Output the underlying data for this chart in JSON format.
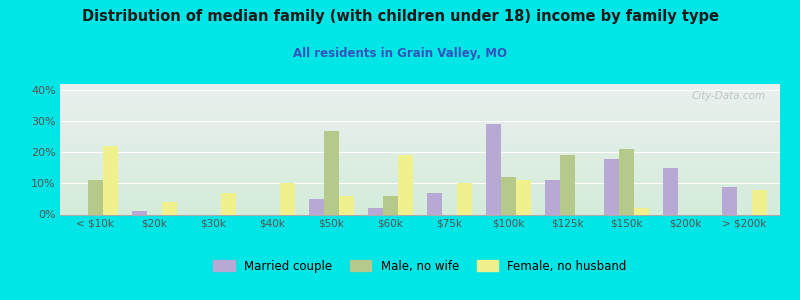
{
  "title": "Distribution of median family (with children under 18) income by family type",
  "subtitle": "All residents in Grain Valley, MO",
  "categories": [
    "< $10k",
    "$20k",
    "$30k",
    "$40k",
    "$50k",
    "$60k",
    "$75k",
    "$100k",
    "$125k",
    "$150k",
    "$200k",
    "> $200k"
  ],
  "married_couple": [
    0,
    1,
    0,
    0,
    5,
    2,
    7,
    29,
    11,
    18,
    15,
    9
  ],
  "male_no_wife": [
    11,
    0,
    0,
    0,
    27,
    6,
    0,
    12,
    19,
    21,
    0,
    0
  ],
  "female_no_husband": [
    22,
    4,
    7,
    10,
    6,
    19,
    10,
    11,
    0,
    2,
    0,
    8
  ],
  "married_color": "#b8a9d4",
  "male_color": "#b5c98a",
  "female_color": "#f0f08c",
  "bg_outer": "#00e5e5",
  "bg_chart_top": "#eaf0ee",
  "bg_chart_bottom": "#d4ecda",
  "title_color": "#1a1a1a",
  "subtitle_color": "#3355bb",
  "axis_color": "#aaaaaa",
  "tick_color": "#555555",
  "watermark": "City-Data.com",
  "ylim": [
    0,
    42
  ],
  "yticks": [
    0,
    10,
    20,
    30,
    40
  ],
  "bar_width": 0.25,
  "legend_labels": [
    "Married couple",
    "Male, no wife",
    "Female, no husband"
  ]
}
